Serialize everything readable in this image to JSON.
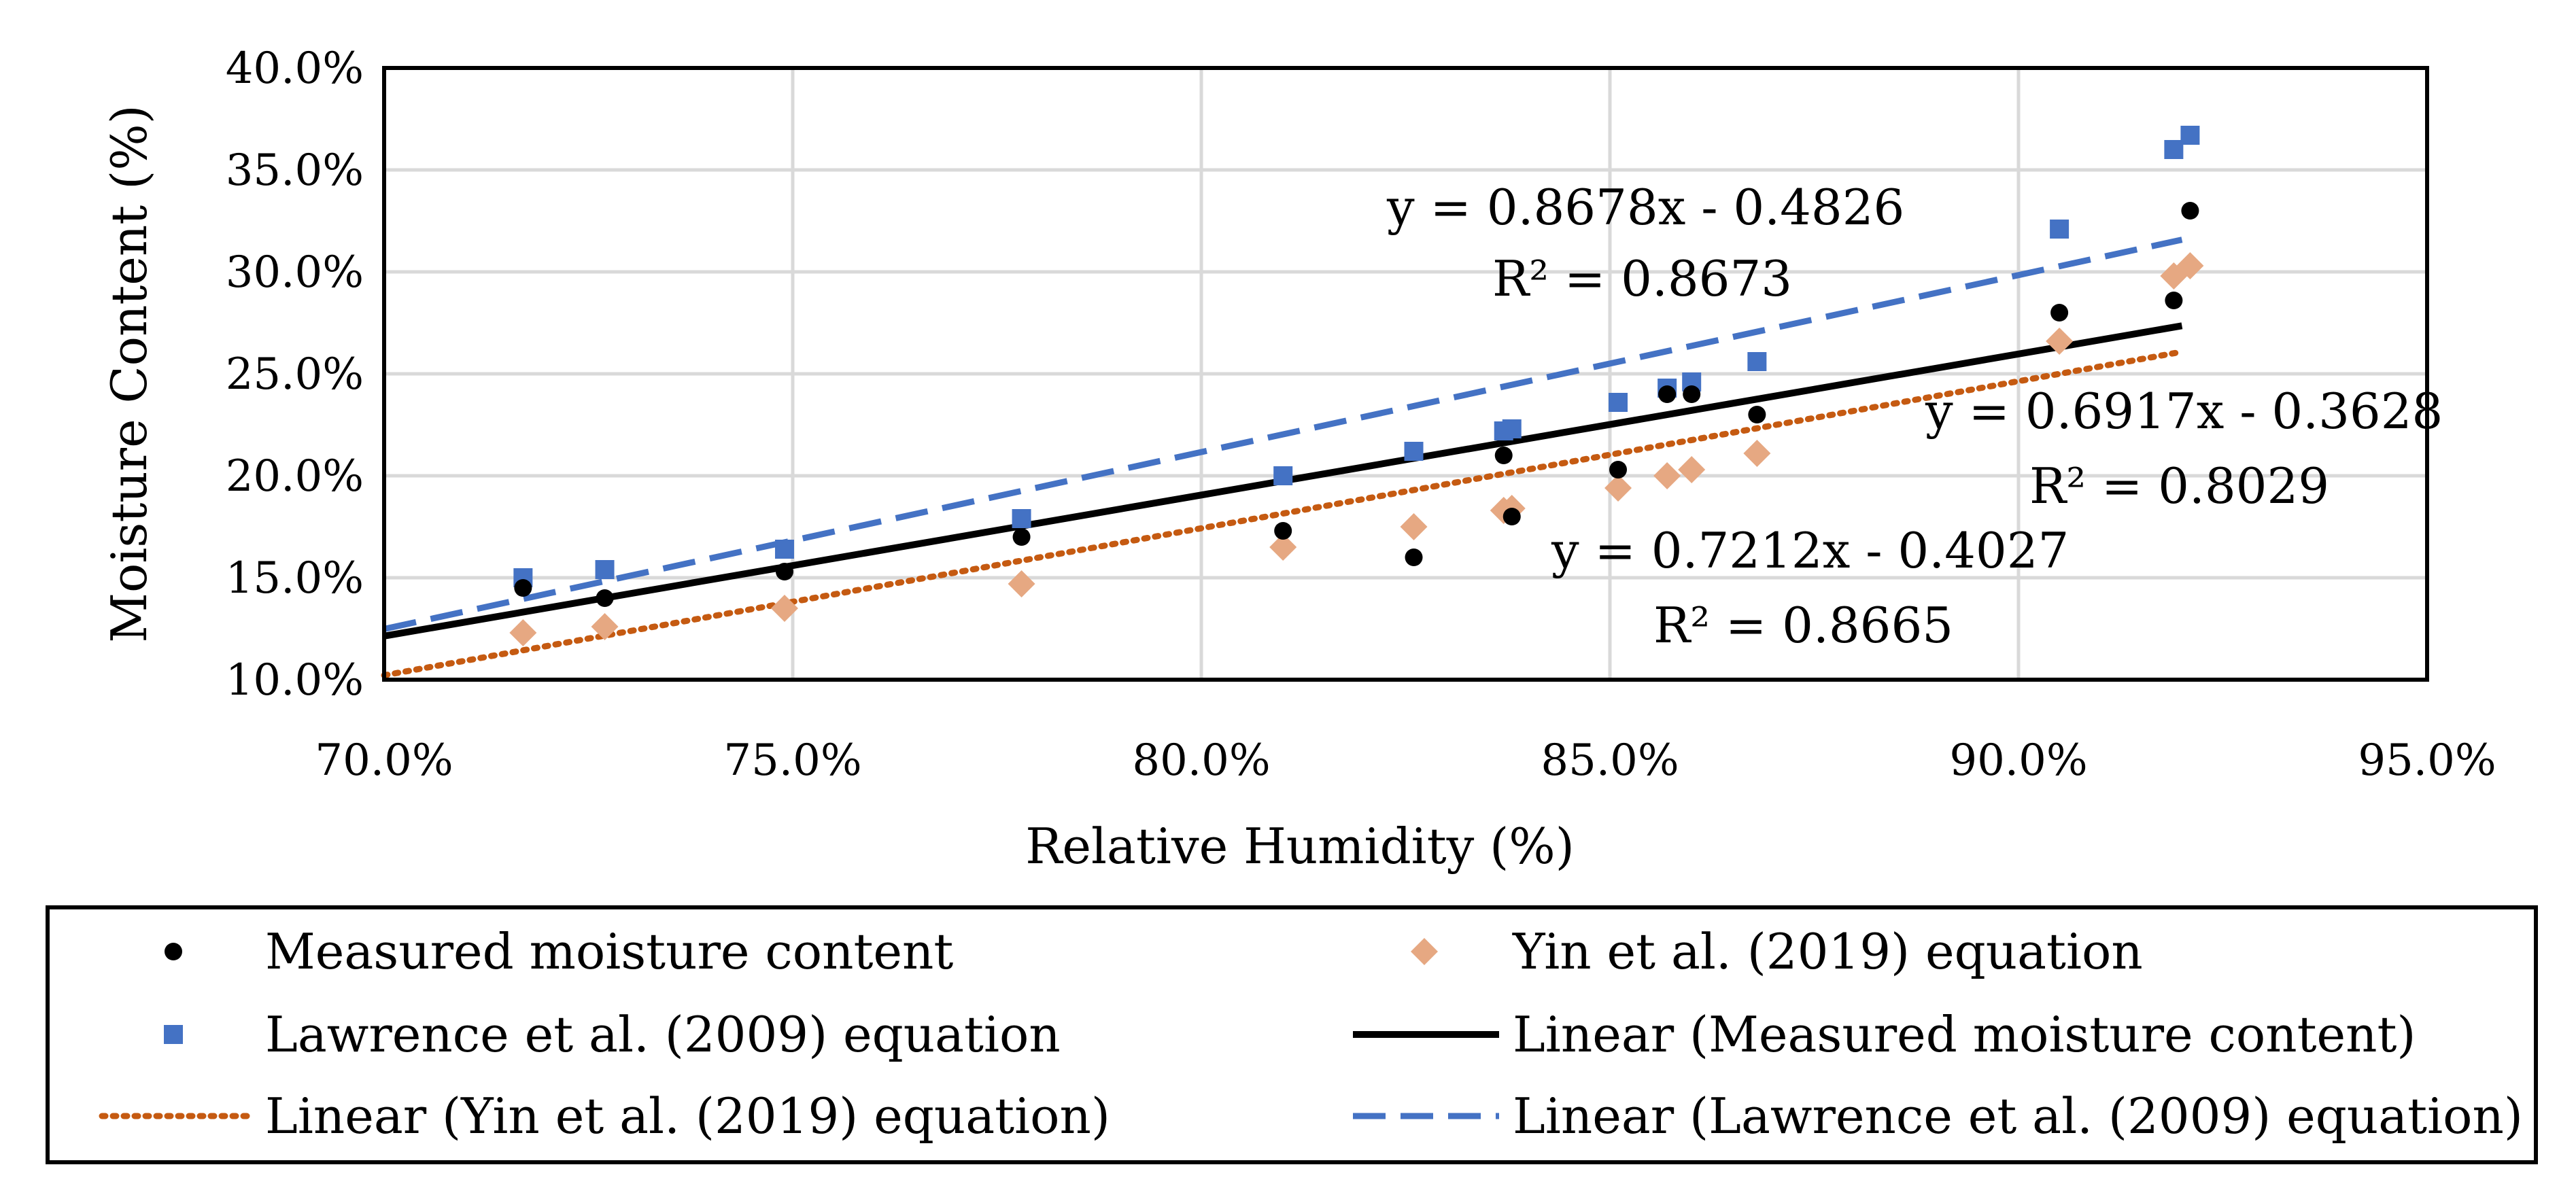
{
  "chart_data": {
    "type": "scatter",
    "xlabel": "Relative Humidity (%)",
    "ylabel": "Moisture Content (%)",
    "xlim": [
      0.7,
      0.95
    ],
    "ylim": [
      0.1,
      0.4
    ],
    "x_ticks": [
      0.7,
      0.75,
      0.8,
      0.85,
      0.9,
      0.95
    ],
    "x_tick_labels": [
      "70.0%",
      "75.0%",
      "80.0%",
      "85.0%",
      "90.0%",
      "95.0%"
    ],
    "y_ticks": [
      0.1,
      0.15,
      0.2,
      0.25,
      0.3,
      0.35,
      0.4
    ],
    "y_tick_labels": [
      "10.0%",
      "15.0%",
      "20.0%",
      "25.0%",
      "30.0%",
      "35.0%",
      "40.0%"
    ],
    "grid": true,
    "legend_position": "bottom",
    "series": [
      {
        "name": "Measured moisture content",
        "marker": "circle",
        "color": "#000000",
        "points": [
          [
            0.717,
            0.145
          ],
          [
            0.727,
            0.14
          ],
          [
            0.749,
            0.153
          ],
          [
            0.778,
            0.17
          ],
          [
            0.81,
            0.173
          ],
          [
            0.826,
            0.16
          ],
          [
            0.837,
            0.21
          ],
          [
            0.838,
            0.18
          ],
          [
            0.851,
            0.203
          ],
          [
            0.857,
            0.24
          ],
          [
            0.86,
            0.24
          ],
          [
            0.868,
            0.23
          ],
          [
            0.905,
            0.28
          ],
          [
            0.919,
            0.286
          ],
          [
            0.921,
            0.33
          ]
        ]
      },
      {
        "name": "Lawrence et al. (2009) equation",
        "marker": "square",
        "color": "#4472C4",
        "points": [
          [
            0.717,
            0.15
          ],
          [
            0.727,
            0.154
          ],
          [
            0.749,
            0.164
          ],
          [
            0.778,
            0.179
          ],
          [
            0.81,
            0.2
          ],
          [
            0.826,
            0.212
          ],
          [
            0.837,
            0.222
          ],
          [
            0.838,
            0.223
          ],
          [
            0.851,
            0.236
          ],
          [
            0.857,
            0.243
          ],
          [
            0.86,
            0.246
          ],
          [
            0.868,
            0.256
          ],
          [
            0.905,
            0.321
          ],
          [
            0.919,
            0.36
          ],
          [
            0.921,
            0.367
          ]
        ]
      },
      {
        "name": "Yin et al. (2019) equation",
        "marker": "diamond",
        "color": "#E6A882",
        "points": [
          [
            0.717,
            0.123
          ],
          [
            0.727,
            0.126
          ],
          [
            0.749,
            0.135
          ],
          [
            0.778,
            0.147
          ],
          [
            0.81,
            0.165
          ],
          [
            0.826,
            0.175
          ],
          [
            0.837,
            0.183
          ],
          [
            0.838,
            0.184
          ],
          [
            0.851,
            0.194
          ],
          [
            0.857,
            0.2
          ],
          [
            0.86,
            0.203
          ],
          [
            0.868,
            0.211
          ],
          [
            0.905,
            0.266
          ],
          [
            0.919,
            0.298
          ],
          [
            0.921,
            0.303
          ]
        ]
      }
    ],
    "trendlines": [
      {
        "name": "Linear (Measured moisture content)",
        "slope": 0.6917,
        "intercept": -0.3628,
        "style": "solid",
        "color": "#000000"
      },
      {
        "name": "Linear (Yin et al. (2019) equation)",
        "slope": 0.7212,
        "intercept": -0.4027,
        "style": "dotted",
        "color": "#C55A11"
      },
      {
        "name": "Linear (Lawrence et al. (2009) equation)",
        "slope": 0.8678,
        "intercept": -0.4826,
        "style": "dashed",
        "color": "#4472C4"
      }
    ],
    "trend_x_range": [
      0.7,
      0.92
    ],
    "annotations": [
      {
        "id": "lawrence",
        "equation": "y = 0.8678x - 0.4826",
        "r2": "R² = 0.8673"
      },
      {
        "id": "measured",
        "equation": "y = 0.6917x - 0.3628",
        "r2": "R² = 0.8029"
      },
      {
        "id": "yin",
        "equation": "y = 0.7212x - 0.4027",
        "r2": "R² = 0.8665"
      }
    ],
    "legend": [
      {
        "label": "Measured moisture content",
        "symbol": "circle",
        "color": "#000000"
      },
      {
        "label": "Yin et al. (2019) equation",
        "symbol": "diamond",
        "color": "#E6A882"
      },
      {
        "label": "Lawrence et al. (2009) equation",
        "symbol": "square",
        "color": "#4472C4"
      },
      {
        "label": "Linear (Measured moisture content)",
        "symbol": "line-solid",
        "color": "#000000"
      },
      {
        "label": "Linear (Yin et al. (2019) equation)",
        "symbol": "line-dotted",
        "color": "#C55A11"
      },
      {
        "label": "Linear (Lawrence et al. (2009) equation)",
        "symbol": "line-dashed",
        "color": "#4472C4"
      }
    ]
  }
}
